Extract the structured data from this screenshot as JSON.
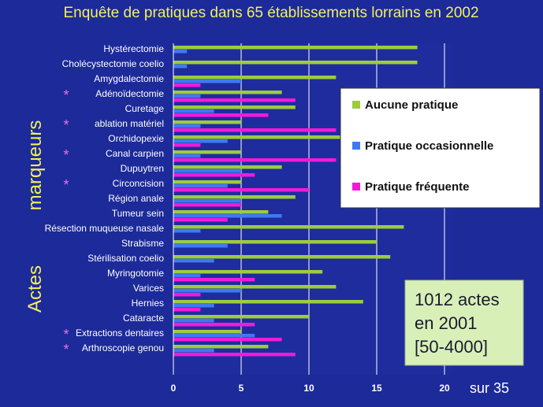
{
  "colors": {
    "background": "#1c2a9a",
    "plot_background": "#1e2c9e",
    "aucune": "#9ccc3c",
    "occasionnelle": "#3f79f2",
    "frequente": "#f21ad8",
    "asterisk": "#f06fe6",
    "legend_bg": "#ffffff",
    "note_bg": "#d8f0b8"
  },
  "chart_data": {
    "type": "bar",
    "orientation": "horizontal",
    "title": "Enquête de pratiques dans 65 établissements lorrains en 2002",
    "ylabel_top": "marqueurs",
    "ylabel_bottom": "Actes",
    "xlim": [
      0,
      20
    ],
    "x_ticks": [
      "0",
      "5",
      "10",
      "15",
      "20"
    ],
    "x_unit_label": "sur 35",
    "grid": "vertical",
    "legend_position": "right",
    "categories": [
      "Hystérectomie",
      "Cholécystectomie coelio",
      "Amygdalectomie",
      "Adénoïdectomie",
      "Curetage",
      "ablation matériel",
      "Orchidopexie",
      "Canal carpien",
      "Dupuytren",
      "Circoncision",
      "Région anale",
      "Tumeur sein",
      "Résection muqueuse nasale",
      "Strabisme",
      "Stérilisation coelio",
      "Myringotomie",
      "Varices",
      "Hernies",
      "Cataracte",
      "Extractions dentaires",
      "Arthroscopie genou"
    ],
    "marked": [
      false,
      false,
      false,
      true,
      false,
      true,
      false,
      true,
      false,
      true,
      false,
      false,
      false,
      false,
      false,
      false,
      false,
      false,
      false,
      true,
      true
    ],
    "marker_symbol": "*",
    "series": [
      {
        "name": "Aucune pratique",
        "values": [
          18,
          18,
          12,
          8,
          9,
          5,
          13,
          5,
          8,
          5,
          9,
          7,
          17,
          15,
          16,
          11,
          12,
          14,
          10,
          5,
          7
        ]
      },
      {
        "name": "Pratique occasionnelle",
        "values": [
          1,
          1,
          5,
          2,
          3,
          2,
          4,
          2,
          5,
          4,
          5,
          8,
          2,
          4,
          3,
          2,
          5,
          3,
          3,
          6,
          3
        ]
      },
      {
        "name": "Pratique fréquente",
        "values": [
          0,
          0,
          2,
          9,
          7,
          12,
          2,
          12,
          6,
          10,
          5,
          4,
          0,
          0,
          0,
          6,
          2,
          2,
          6,
          8,
          9
        ]
      }
    ]
  },
  "note": {
    "lines": [
      "1012 actes",
      "en 2001",
      "[50-4000]"
    ]
  }
}
